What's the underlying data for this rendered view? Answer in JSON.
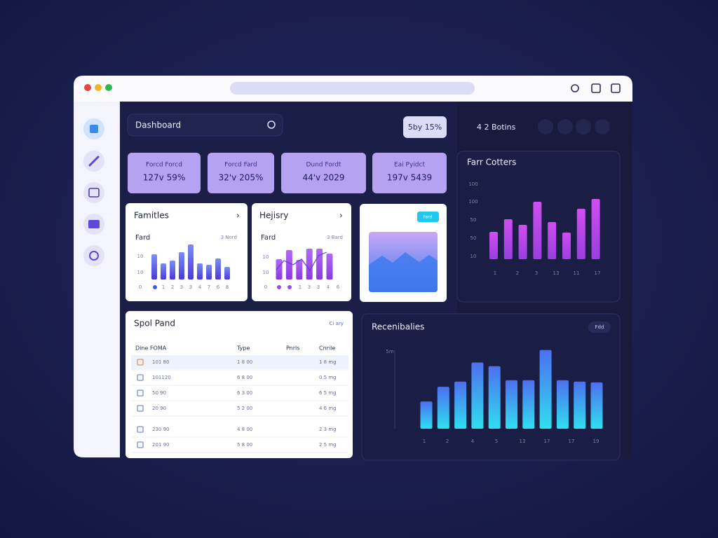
{
  "search": {
    "label": "Dashboard"
  },
  "badge": "5by 15%",
  "header_right": "4 2 Botins",
  "stats": [
    {
      "label": "Forcd     Forcd",
      "value": "127v   59%"
    },
    {
      "label": "Forcd     Fard",
      "value": "32'v  205%"
    },
    {
      "label": "Dund Fordt",
      "value": "44'v  2029"
    },
    {
      "label": "Eai Pyidct",
      "value": "197v  5439"
    }
  ],
  "families": {
    "title": "Famitles",
    "subtitle": "Fard",
    "note": "3 Nord",
    "y_labels": [
      "10",
      "10",
      "0"
    ],
    "x_labels": [
      "1",
      "2",
      "3",
      "3",
      "4",
      "7",
      "6",
      "8"
    ],
    "colors": [
      "#7a8ff5",
      "#4a3ad8"
    ],
    "ylim": [
      0,
      60
    ],
    "values": [
      36,
      23,
      27,
      39,
      50,
      23,
      21,
      30,
      18
    ]
  },
  "history": {
    "title": "Hejisry",
    "subtitle": "Fard",
    "note": "3 Bard",
    "y_labels": [
      "10",
      "10",
      "0"
    ],
    "x_labels": [
      "1",
      "3",
      "3",
      "4",
      "6"
    ],
    "colors": [
      "#b06af5",
      "#8a3ae0"
    ],
    "ylim": [
      0,
      60
    ],
    "values": [
      29,
      42,
      28,
      44,
      44,
      37
    ]
  },
  "image_card": {
    "button": "Fard"
  },
  "farr": {
    "title": "Farr Cotters",
    "y_labels": [
      "100",
      "100",
      "50",
      "50",
      "10"
    ],
    "x_labels": [
      "1",
      "2",
      "3",
      "13",
      "11",
      "17"
    ],
    "colors": [
      "#d04ef0",
      "#9a3ee0"
    ],
    "ylim": [
      0,
      100
    ],
    "values": [
      39,
      57,
      49,
      82,
      53,
      38,
      72,
      86
    ]
  },
  "table": {
    "title": "Spol Pand",
    "action": "Ci ary",
    "columns": [
      "Dine  FOMA",
      "Type",
      "Pnrls",
      "Cnrile"
    ],
    "rows": [
      [
        "101 80",
        "1 8 00",
        "1 8 mg"
      ],
      [
        "101120",
        "6 8 00",
        "0.5 mg"
      ],
      [
        "50 90",
        "6 3 00",
        "6 5 mg"
      ],
      [
        "20 90",
        "5 2 00",
        "4 6 mg"
      ],
      [
        "230 90",
        "4 8 00",
        "2 3 mg"
      ],
      [
        "201 90",
        "5 8 00",
        "2 5 mg"
      ]
    ]
  },
  "recent": {
    "title": "Recenibalies",
    "action": "Fdd",
    "y_labels": [
      "5m"
    ],
    "x_labels": [
      "1",
      "2",
      "4",
      "5",
      "13",
      "17",
      "17",
      "19"
    ],
    "colors": [
      "#4d6ff0",
      "#2ee0f0"
    ],
    "ylim": [
      0,
      120
    ],
    "values": [
      37,
      57,
      64,
      90,
      85,
      66,
      66,
      107,
      66,
      64,
      63
    ]
  }
}
